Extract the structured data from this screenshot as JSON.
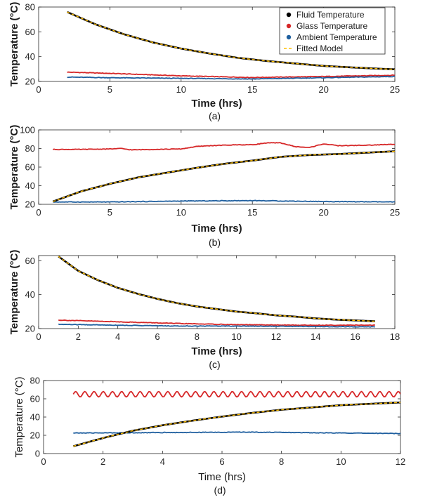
{
  "chart_data": [
    {
      "type": "line",
      "id": "a",
      "caption": "(a)",
      "xlabel": "Time (hrs)",
      "ylabel": "Temperature (°C)",
      "xlim": [
        0,
        25
      ],
      "ylim": [
        20,
        80
      ],
      "xticks": [
        0,
        5,
        10,
        15,
        20,
        25
      ],
      "yticks": [
        20,
        40,
        60,
        80
      ],
      "legend": {
        "placement": "top-right",
        "entries": [
          "Fluid Temperature",
          "Glass Temperature",
          "Ambient Temperature",
          "Fitted Model"
        ]
      },
      "series": [
        {
          "name": "Fluid Temperature",
          "color": "#000000",
          "x": [
            2,
            4,
            6,
            8,
            10,
            12,
            14,
            16,
            18,
            20,
            22,
            24,
            25
          ],
          "y": [
            76,
            66,
            58,
            51.5,
            46.5,
            42.5,
            39,
            36.5,
            34.5,
            32.5,
            31.3,
            30.2,
            29.8
          ]
        },
        {
          "name": "Glass Temperature",
          "color": "#d62728",
          "x": [
            2,
            5,
            10,
            15,
            20,
            25
          ],
          "y": [
            27.5,
            26.5,
            24.5,
            23.2,
            24,
            25
          ]
        },
        {
          "name": "Ambient Temperature",
          "color": "#1f5f9f",
          "x": [
            2,
            5,
            10,
            15,
            20,
            25
          ],
          "y": [
            23.5,
            23,
            22.5,
            22,
            23,
            24
          ]
        },
        {
          "name": "Fitted Model",
          "color": "#ffbf00",
          "x": [
            2,
            4,
            6,
            8,
            10,
            12,
            14,
            16,
            18,
            20,
            22,
            24,
            25
          ],
          "y": [
            76,
            66,
            58,
            51.5,
            46.5,
            42.5,
            39,
            36.5,
            34.5,
            32.5,
            31.3,
            30.2,
            29.8
          ]
        }
      ]
    },
    {
      "type": "line",
      "id": "b",
      "caption": "(b)",
      "xlabel": "Time (hrs)",
      "ylabel": "Temperature (°C)",
      "xlim": [
        0,
        25
      ],
      "ylim": [
        20,
        100
      ],
      "xticks": [
        0,
        5,
        10,
        15,
        20,
        25
      ],
      "yticks": [
        20,
        40,
        60,
        80,
        100
      ],
      "series": [
        {
          "name": "Fluid Temperature",
          "color": "#000000",
          "x": [
            1,
            3,
            5,
            7,
            9,
            11,
            13,
            15,
            17,
            19,
            21,
            23,
            25
          ],
          "y": [
            23,
            34,
            42,
            49,
            54,
            59,
            63.5,
            67,
            71,
            73,
            74,
            75.5,
            77
          ]
        },
        {
          "name": "Glass Temperature",
          "color": "#d62728",
          "x": [
            1,
            3,
            5,
            5.8,
            6.5,
            8,
            10,
            11,
            12,
            14,
            15,
            16,
            17,
            18,
            19,
            20,
            21,
            23,
            25
          ],
          "y": [
            79,
            79,
            79.5,
            80,
            78.5,
            79,
            79.5,
            82,
            83,
            84,
            84,
            86,
            86,
            82,
            81,
            85,
            83,
            83.5,
            84.5
          ]
        },
        {
          "name": "Ambient Temperature",
          "color": "#1f5f9f",
          "x": [
            1,
            5,
            10,
            15,
            20,
            25
          ],
          "y": [
            22.5,
            22.5,
            23.5,
            24,
            23,
            22.5
          ]
        },
        {
          "name": "Fitted Model",
          "color": "#ffbf00",
          "x": [
            1,
            3,
            5,
            7,
            9,
            11,
            13,
            15,
            17,
            19,
            21,
            23,
            25
          ],
          "y": [
            23,
            34,
            42,
            49,
            54,
            59,
            63.5,
            67,
            71,
            73,
            74,
            75.5,
            77
          ]
        }
      ]
    },
    {
      "type": "line",
      "id": "c",
      "caption": "(c)",
      "xlabel": "Time (hrs)",
      "ylabel": "Temperature (°C)",
      "xlim": [
        0,
        18
      ],
      "ylim": [
        20,
        63
      ],
      "xticks": [
        0,
        2,
        4,
        6,
        8,
        10,
        12,
        14,
        16,
        18
      ],
      "yticks": [
        20,
        40,
        60
      ],
      "series": [
        {
          "name": "Fluid Temperature",
          "color": "#000000",
          "x": [
            1,
            2,
            3,
            4,
            5,
            6,
            7,
            8,
            9,
            10,
            11,
            12,
            13,
            14,
            15,
            16,
            17
          ],
          "y": [
            62.5,
            54,
            48.5,
            44,
            40.5,
            37.5,
            35,
            33,
            31.5,
            30,
            29,
            27.8,
            27,
            26,
            25.3,
            24.8,
            24.3
          ]
        },
        {
          "name": "Glass Temperature",
          "color": "#d62728",
          "x": [
            1,
            4,
            7,
            10,
            13,
            17
          ],
          "y": [
            25,
            24,
            23,
            22.3,
            22,
            22
          ]
        },
        {
          "name": "Ambient Temperature",
          "color": "#1f5f9f",
          "x": [
            1,
            4,
            7,
            10,
            13,
            17
          ],
          "y": [
            22.5,
            22,
            21.5,
            21.5,
            21.3,
            21
          ]
        },
        {
          "name": "Fitted Model",
          "color": "#ffbf00",
          "x": [
            1,
            2,
            3,
            4,
            5,
            6,
            7,
            8,
            9,
            10,
            11,
            12,
            13,
            14,
            15,
            16,
            17
          ],
          "y": [
            62.5,
            54,
            48.5,
            44,
            40.5,
            37.5,
            35,
            33,
            31.5,
            30,
            29,
            27.8,
            27,
            26,
            25.3,
            24.8,
            24.3
          ]
        }
      ]
    },
    {
      "type": "line",
      "id": "d",
      "caption": "(d)",
      "xlabel": "Time (hrs)",
      "ylabel": "Temperature (°C)",
      "xlim": [
        0,
        12
      ],
      "ylim": [
        0,
        80
      ],
      "xticks": [
        0,
        2,
        4,
        6,
        8,
        10,
        12
      ],
      "yticks": [
        0,
        20,
        40,
        60,
        80
      ],
      "series": [
        {
          "name": "Fluid Temperature",
          "color": "#000000",
          "x": [
            1,
            2,
            3,
            4,
            5,
            6,
            7,
            8,
            9,
            10,
            11,
            12
          ],
          "y": [
            8,
            17,
            25,
            31,
            36,
            40.5,
            44.5,
            48,
            50.5,
            53,
            54.5,
            56
          ]
        },
        {
          "name": "Glass Temperature",
          "color": "#d62728",
          "x": [
            1,
            12
          ],
          "y": [
            65,
            65
          ],
          "oscillation": {
            "amplitude": 3,
            "period": 0.31
          }
        },
        {
          "name": "Ambient Temperature",
          "color": "#1f5f9f",
          "x": [
            1,
            4,
            7,
            10,
            12
          ],
          "y": [
            22.5,
            23,
            23.5,
            22.5,
            22
          ]
        },
        {
          "name": "Fitted Model",
          "color": "#ffbf00",
          "x": [
            1,
            2,
            3,
            4,
            5,
            6,
            7,
            8,
            9,
            10,
            11,
            12
          ],
          "y": [
            8,
            17,
            25,
            31,
            36,
            40.5,
            44.5,
            48,
            50.5,
            53,
            54.5,
            56
          ]
        }
      ]
    }
  ]
}
